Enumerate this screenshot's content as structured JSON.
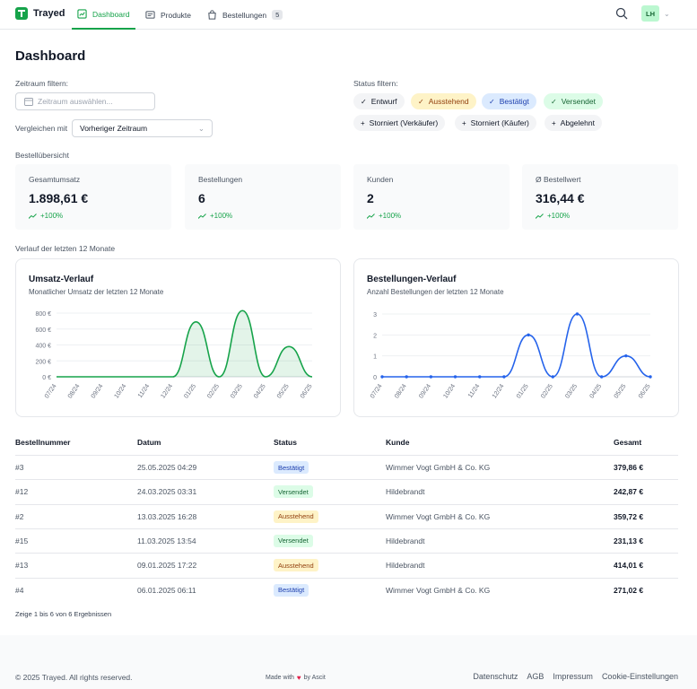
{
  "nav": {
    "brand": "Trayed",
    "tabs": [
      {
        "label": "Dashboard",
        "active": true
      },
      {
        "label": "Produkte",
        "active": false
      },
      {
        "label": "Bestellungen",
        "active": false,
        "badge": "5"
      }
    ],
    "avatar_initials": "LH"
  },
  "header": {
    "title": "Dashboard",
    "date_filter_label": "Zeitraum filtern:",
    "date_placeholder": "Zeitraum auswählen...",
    "compare_label": "Vergleichen mit",
    "compare_value": "Vorheriger Zeitraum",
    "status_filter_label": "Status filtern:"
  },
  "status_chips": [
    {
      "label": "Entwurf",
      "selected": true,
      "bg": "#f3f4f6",
      "fg": "#111827"
    },
    {
      "label": "Ausstehend",
      "selected": true,
      "bg": "#fef3c7",
      "fg": "#92400e"
    },
    {
      "label": "Bestätigt",
      "selected": true,
      "bg": "#dbeafe",
      "fg": "#1e40af"
    },
    {
      "label": "Versendet",
      "selected": true,
      "bg": "#dcfce7",
      "fg": "#166534"
    },
    {
      "label": "Storniert (Verkäufer)",
      "selected": false,
      "bg": "#f3f4f6",
      "fg": "#111827"
    },
    {
      "label": "Storniert (Käufer)",
      "selected": false,
      "bg": "#f3f4f6",
      "fg": "#111827"
    },
    {
      "label": "Abgelehnt",
      "selected": false,
      "bg": "#f3f4f6",
      "fg": "#111827"
    }
  ],
  "overview": {
    "section_label": "Bestellübersicht",
    "stats": [
      {
        "label": "Gesamtumsatz",
        "value": "1.898,61 €",
        "delta": "+100%"
      },
      {
        "label": "Bestellungen",
        "value": "6",
        "delta": "+100%"
      },
      {
        "label": "Kunden",
        "value": "2",
        "delta": "+100%"
      },
      {
        "label": "Ø Bestellwert",
        "value": "316,44 €",
        "delta": "+100%"
      }
    ]
  },
  "history_label": "Verlauf der letzten 12 Monate",
  "chart_data": [
    {
      "type": "area",
      "title": "Umsatz-Verlauf",
      "subtitle": "Monatlicher Umsatz der letzten 12 Monate",
      "categories": [
        "07/24",
        "08/24",
        "09/24",
        "10/24",
        "11/24",
        "12/24",
        "01/25",
        "02/25",
        "03/25",
        "04/25",
        "05/25",
        "06/25"
      ],
      "values": [
        0,
        0,
        0,
        0,
        0,
        0,
        690,
        0,
        830,
        0,
        380,
        0
      ],
      "yticks": [
        "800 €",
        "600 €",
        "400 €",
        "200 €",
        "0 €"
      ],
      "ylim": [
        0,
        800
      ],
      "color": "#16a34a"
    },
    {
      "type": "line",
      "title": "Bestellungen-Verlauf",
      "subtitle": "Anzahl Bestellungen der letzten 12 Monate",
      "categories": [
        "07/24",
        "08/24",
        "09/24",
        "10/24",
        "11/24",
        "12/24",
        "01/25",
        "02/25",
        "03/25",
        "04/25",
        "05/25",
        "06/25"
      ],
      "values": [
        0,
        0,
        0,
        0,
        0,
        0,
        2,
        0,
        3,
        0,
        1,
        0
      ],
      "yticks": [
        "3",
        "2",
        "1",
        "0"
      ],
      "ylim": [
        0,
        3
      ],
      "color": "#2563eb"
    }
  ],
  "table": {
    "headers": [
      "Bestellnummer",
      "Datum",
      "Status",
      "Kunde",
      "Gesamt"
    ],
    "rows": [
      {
        "id": "#3",
        "date": "25.05.2025 04:29",
        "status": "Bestätigt",
        "customer": "Wimmer Vogt GmbH & Co. KG",
        "total": "379,86 €"
      },
      {
        "id": "#12",
        "date": "24.03.2025 03:31",
        "status": "Versendet",
        "customer": "Hildebrandt",
        "total": "242,87 €"
      },
      {
        "id": "#2",
        "date": "13.03.2025 16:28",
        "status": "Ausstehend",
        "customer": "Wimmer Vogt GmbH & Co. KG",
        "total": "359,72 €"
      },
      {
        "id": "#15",
        "date": "11.03.2025 13:54",
        "status": "Versendet",
        "customer": "Hildebrandt",
        "total": "231,13 €"
      },
      {
        "id": "#13",
        "date": "09.01.2025 17:22",
        "status": "Ausstehend",
        "customer": "Hildebrandt",
        "total": "414,01 €"
      },
      {
        "id": "#4",
        "date": "06.01.2025 06:11",
        "status": "Bestätigt",
        "customer": "Wimmer Vogt GmbH & Co. KG",
        "total": "271,02 €"
      }
    ],
    "summary": "Zeige 1 bis 6 von 6 Ergebnissen"
  },
  "status_colors": {
    "Bestätigt": {
      "bg": "#dbeafe",
      "fg": "#1e40af"
    },
    "Versendet": {
      "bg": "#dcfce7",
      "fg": "#166534"
    },
    "Ausstehend": {
      "bg": "#fef3c7",
      "fg": "#92400e"
    }
  },
  "footer": {
    "copyright": "© 2025 Trayed. All rights reserved.",
    "made_with": "Made with",
    "made_by": "by Ascit",
    "links": [
      "Datenschutz",
      "AGB",
      "Impressum",
      "Cookie-Einstellungen"
    ]
  }
}
